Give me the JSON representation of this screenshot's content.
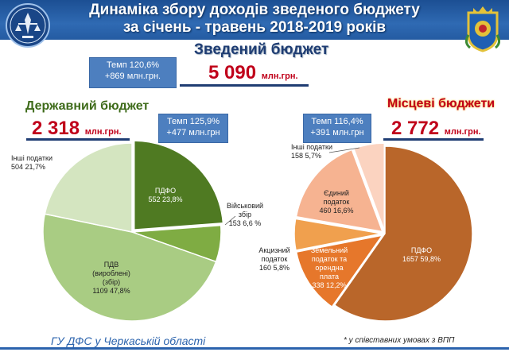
{
  "title": {
    "line1": "Динаміка збору доходів зведеного бюджету",
    "line2": "за січень - травень 2018-2019 років"
  },
  "consolidated": {
    "heading": "Зведений бюджет",
    "amount": "5 090",
    "unit": "млн.грн.",
    "rate_line1": "Темп 120,6%",
    "rate_line2": "+869 млн.грн."
  },
  "state": {
    "heading": "Державний бюджет",
    "amount": "2 318",
    "unit": "млн.грн.",
    "rate_line1": "Темп 125,9%",
    "rate_line2": "+477 млн.грн"
  },
  "local": {
    "heading": "Місцеві бюджети",
    "amount": "2 772",
    "unit": "млн.грн.",
    "rate_line1": "Темп 116,4%",
    "rate_line2": "+391 млн.грн"
  },
  "footer": {
    "org": "ГУ ДФС у Черкаській області",
    "note": "* у співставних умовах з ВПП"
  },
  "chart_data": [
    {
      "type": "pie",
      "slices": [
        {
          "label": [
            "ПДФО"
          ],
          "value": 552,
          "value_text": "552  23,8%",
          "color": "#4f7a22"
        },
        {
          "label": [
            "Військовий",
            "збір"
          ],
          "value": 153,
          "value_text": "153  6,6 %",
          "color": "#7fac43"
        },
        {
          "label": [
            "ПДВ",
            "(вироблені)",
            "(збір)"
          ],
          "value": 1109,
          "value_text": "1109  47,8%",
          "color": "#a9cc83"
        },
        {
          "label": [
            "Інші податки"
          ],
          "value": 504,
          "value_text": "504   21,7%",
          "color": "#d4e5c0"
        }
      ]
    },
    {
      "type": "pie",
      "slices": [
        {
          "label": [
            "ПДФО"
          ],
          "value": 1657,
          "value_text": "1657  59,8%",
          "color": "#b9662a"
        },
        {
          "label": [
            "Земельний",
            "податок та",
            "орендна",
            "плата"
          ],
          "value": 338,
          "value_text": "338  12,2%",
          "color": "#e6772b"
        },
        {
          "label": [
            "Акцизний",
            "податок"
          ],
          "value": 160,
          "value_text": "160  5,8%",
          "color": "#f0a04e"
        },
        {
          "label": [
            "Єдиний",
            "податок"
          ],
          "value": 460,
          "value_text": "460  16,6%",
          "color": "#f6b391"
        },
        {
          "label": [
            "Інші податки"
          ],
          "value": 158,
          "value_text": "158   5,7%",
          "color": "#fbd3c0"
        }
      ]
    }
  ]
}
